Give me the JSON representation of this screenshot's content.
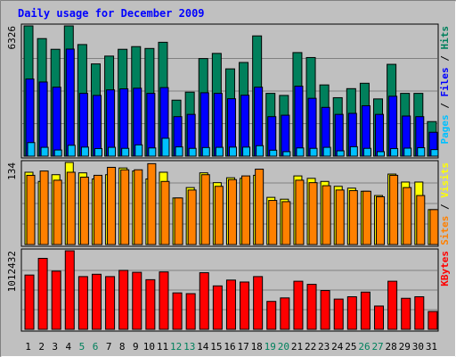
{
  "colors": {
    "background": "#c0c0c0",
    "panel_border": "#000000",
    "gridline": "#808080",
    "title": "#0000ff",
    "hits": "#00805c",
    "files": "#0000ff",
    "pages": "#00c0ff",
    "visits": "#ffff00",
    "sites": "#ff8000",
    "kbytes": "#ff0000",
    "weekday_label": "#000000",
    "weekend_label": "#00805c"
  },
  "chart_data": {
    "type": "bar",
    "title": "Daily usage for December 2009",
    "categories": [
      "1",
      "2",
      "3",
      "4",
      "5",
      "6",
      "7",
      "8",
      "9",
      "10",
      "11",
      "12",
      "13",
      "14",
      "15",
      "16",
      "17",
      "18",
      "19",
      "20",
      "21",
      "22",
      "23",
      "24",
      "25",
      "26",
      "27",
      "28",
      "29",
      "30",
      "31"
    ],
    "weekend_days": [
      "5",
      "6",
      "12",
      "13",
      "19",
      "20",
      "26",
      "27"
    ],
    "panels": [
      {
        "id": "hits_files_pages",
        "max_label": "6326",
        "ylim": [
          0,
          6326
        ],
        "legend": [
          {
            "text": "Pages",
            "color_key": "pages"
          },
          {
            "text": " / ",
            "color_key": "panel_border"
          },
          {
            "text": "Files",
            "color_key": "files"
          },
          {
            "text": " / ",
            "color_key": "panel_border"
          },
          {
            "text": "Hits",
            "color_key": "hits"
          }
        ],
        "series": [
          {
            "name": "Hits",
            "color_key": "hits",
            "values": [
              6326,
              5710,
              5190,
              6326,
              5420,
              4480,
              4860,
              5190,
              5320,
              5230,
              5530,
              2720,
              3110,
              4740,
              4990,
              4240,
              4550,
              5840,
              3050,
              2950,
              5030,
              4790,
              3460,
              2840,
              3280,
              3540,
              2780,
              4460,
              3050,
              3050,
              1680
            ]
          },
          {
            "name": "Files",
            "color_key": "files",
            "values": [
              3750,
              3600,
              3350,
              5200,
              3050,
              2950,
              3220,
              3270,
              3300,
              3050,
              3330,
              1920,
              2030,
              3080,
              3050,
              2790,
              2960,
              3350,
              1920,
              1990,
              3400,
              2810,
              2370,
              2030,
              2080,
              2450,
              2030,
              2910,
              1950,
              1920,
              1160
            ]
          },
          {
            "name": "Pages",
            "color_key": "pages",
            "values": [
              660,
              430,
              300,
              530,
              440,
              370,
              430,
              380,
              550,
              400,
              870,
              450,
              380,
              420,
              430,
              440,
              440,
              510,
              290,
              220,
              400,
              380,
              430,
              260,
              460,
              380,
              220,
              370,
              390,
              410,
              320
            ]
          }
        ]
      },
      {
        "id": "visits_sites",
        "max_label": "134",
        "ylim": [
          0,
          134
        ],
        "legend": [
          {
            "text": "Sites",
            "color_key": "sites"
          },
          {
            "text": " / ",
            "color_key": "panel_border"
          },
          {
            "text": "Visits",
            "color_key": "visits"
          }
        ],
        "series": [
          {
            "name": "Visits",
            "color_key": "visits",
            "values": [
              118,
              103,
              114,
              134,
              117,
              107,
              114,
              125,
              120,
              107,
              118,
              76,
              93,
              117,
              101,
              109,
              108,
              113,
              77,
              74,
              112,
              108,
              103,
              95,
              92,
              87,
              80,
              115,
              102,
              102,
              57
            ]
          },
          {
            "name": "Sites",
            "color_key": "sites",
            "values": [
              113,
              120,
              105,
              118,
              110,
              113,
              126,
              122,
              122,
              132,
              103,
              76,
              89,
              114,
              95,
              106,
              112,
              123,
              72,
              70,
              105,
              101,
              96,
              89,
              88,
              87,
              78,
              113,
              93,
              80,
              57
            ]
          }
        ]
      },
      {
        "id": "kbytes",
        "max_label": "1012432",
        "ylim": [
          0,
          1012432
        ],
        "legend": [
          {
            "text": "KBytes",
            "color_key": "kbytes"
          }
        ],
        "series": [
          {
            "name": "KBytes",
            "color_key": "kbytes",
            "values": [
              700000,
              915000,
              750000,
              1012432,
              680000,
              710000,
              680000,
              760000,
              735000,
              640000,
              740000,
              470000,
              460000,
              730000,
              560000,
              635000,
              610000,
              680000,
              360000,
              405000,
              620000,
              580000,
              500000,
              390000,
              420000,
              480000,
              300000,
              620000,
              400000,
              420000,
              230000
            ]
          }
        ]
      }
    ]
  }
}
